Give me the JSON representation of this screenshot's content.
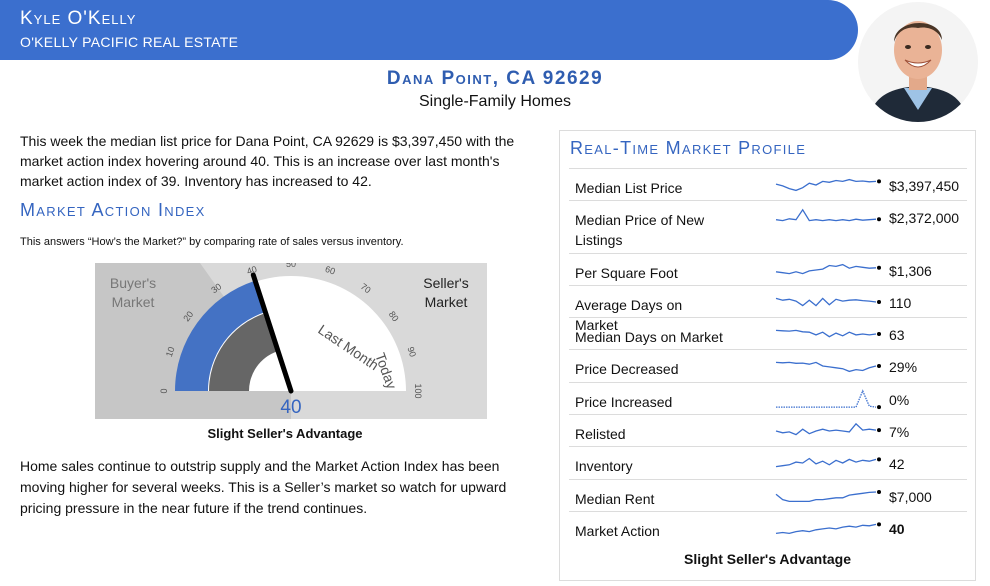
{
  "header": {
    "agent_name": "Kyle O'Kelly",
    "company": "O'KELLY PACIFIC REAL ESTATE"
  },
  "location": {
    "title": "Dana Point, CA 92629",
    "subtitle": "Single-Family Homes"
  },
  "intro": "This week the median list price for Dana Point, CA 92629 is $3,397,450 with the market action index hovering around 40. This is an increase over last month's market action index of 39. Inventory has increased to 42.",
  "mai": {
    "heading": "Market Action Index",
    "explainer": "This answers “How’s the Market?” by comparing rate of sales versus inventory.",
    "buyers_label_1": "Buyer's",
    "buyers_label_2": "Market",
    "sellers_label_1": "Seller's",
    "sellers_label_2": "Market",
    "last_month_label": "Last Month",
    "today_label": "Today",
    "ticks": [
      "0",
      "10",
      "20",
      "30",
      "40",
      "50",
      "60",
      "70",
      "80",
      "90",
      "100"
    ],
    "today_value": 40,
    "last_month_value": 39,
    "value_display": "40",
    "status": "Slight Seller's Advantage"
  },
  "outro": "Home sales continue to outstrip supply and the Market Action Index has been moving higher for several weeks. This is a Seller’s market so watch for upward pricing pressure in the near future if the trend continues.",
  "profile": {
    "heading": "Real-Time Market Profile",
    "rows": [
      {
        "label": "Median List Price",
        "value": "$3,397,450",
        "spark": [
          0.55,
          0.45,
          0.3,
          0.2,
          0.35,
          0.6,
          0.5,
          0.7,
          0.65,
          0.75,
          0.7,
          0.8,
          0.7,
          0.72,
          0.68,
          0.7
        ]
      },
      {
        "label": "Median Price of New Listings",
        "value": "$2,372,000",
        "spark": [
          0.35,
          0.3,
          0.4,
          0.35,
          0.9,
          0.3,
          0.35,
          0.3,
          0.35,
          0.3,
          0.35,
          0.3,
          0.38,
          0.32,
          0.35,
          0.38
        ]
      },
      {
        "label": "Per Square Foot",
        "value": "$1,306",
        "spark": [
          0.4,
          0.35,
          0.3,
          0.4,
          0.3,
          0.45,
          0.5,
          0.55,
          0.75,
          0.7,
          0.8,
          0.6,
          0.7,
          0.65,
          0.6,
          0.62
        ]
      },
      {
        "label": "Average Days on Market",
        "value": "110",
        "spark": [
          0.7,
          0.6,
          0.65,
          0.55,
          0.3,
          0.6,
          0.3,
          0.7,
          0.35,
          0.65,
          0.55,
          0.6,
          0.62,
          0.58,
          0.55,
          0.5
        ]
      },
      {
        "label": "Median Days on Market",
        "value": "63",
        "spark": [
          0.7,
          0.68,
          0.66,
          0.7,
          0.62,
          0.6,
          0.45,
          0.6,
          0.35,
          0.55,
          0.4,
          0.6,
          0.45,
          0.5,
          0.45,
          0.5
        ]
      },
      {
        "label": "Price Decreased",
        "value": "29%",
        "spark": [
          0.7,
          0.68,
          0.7,
          0.65,
          0.66,
          0.6,
          0.7,
          0.5,
          0.45,
          0.4,
          0.35,
          0.2,
          0.3,
          0.25,
          0.4,
          0.5
        ]
      },
      {
        "label": "Price Increased",
        "value": "0%",
        "spark": [
          0.05,
          0.05,
          0.05,
          0.05,
          0.05,
          0.05,
          0.05,
          0.05,
          0.05,
          0.05,
          0.05,
          0.05,
          0.05,
          0.95,
          0.1,
          0.05
        ]
      },
      {
        "label": "Relisted",
        "value": "7%",
        "spark": [
          0.5,
          0.4,
          0.45,
          0.3,
          0.6,
          0.35,
          0.5,
          0.6,
          0.5,
          0.55,
          0.5,
          0.45,
          0.9,
          0.55,
          0.6,
          0.55
        ]
      },
      {
        "label": "Inventory",
        "value": "42",
        "spark": [
          0.3,
          0.35,
          0.4,
          0.55,
          0.5,
          0.75,
          0.45,
          0.6,
          0.4,
          0.65,
          0.5,
          0.7,
          0.55,
          0.65,
          0.6,
          0.7
        ]
      },
      {
        "label": "Median Rent",
        "value": "$7,000",
        "spark": [
          0.6,
          0.3,
          0.2,
          0.2,
          0.2,
          0.2,
          0.3,
          0.3,
          0.35,
          0.4,
          0.4,
          0.55,
          0.6,
          0.65,
          0.7,
          0.72
        ]
      },
      {
        "label": "Market Action",
        "value": "40",
        "bold": true,
        "spark": [
          0.2,
          0.25,
          0.2,
          0.3,
          0.35,
          0.3,
          0.4,
          0.45,
          0.5,
          0.45,
          0.55,
          0.6,
          0.55,
          0.65,
          0.62,
          0.7
        ]
      }
    ],
    "status": "Slight Seller's Advantage"
  },
  "colors": {
    "brand_blue": "#3b6fce",
    "heading_blue": "#3565c0",
    "gauge_blue": "#4472c4",
    "gauge_dark_gray": "#666666",
    "gauge_bg": "#d9d9d9"
  }
}
